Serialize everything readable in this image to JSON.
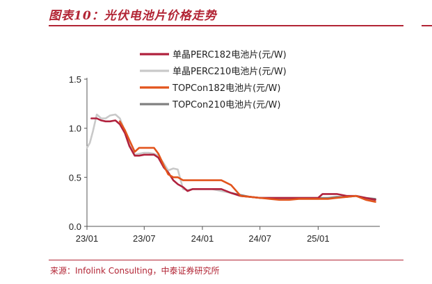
{
  "header": {
    "title": "图表10：光伏电池片价格走势"
  },
  "footer": {
    "source": "来源：Infolink Consulting，中泰证券研究所"
  },
  "chart_data": {
    "type": "line",
    "title": "图表10：光伏电池片价格走势",
    "xlabel": "",
    "ylabel": "",
    "ylim": [
      0.0,
      1.5
    ],
    "yticks": [
      0.0,
      0.5,
      1.0,
      1.5
    ],
    "ytick_labels": [
      "0.0",
      "0.5",
      "1.0",
      "1.5"
    ],
    "xlim": [
      "2023-01-01",
      "2025-07-15"
    ],
    "xticks": [
      "2023-01-01",
      "2023-07-01",
      "2024-01-01",
      "2024-07-01",
      "2025-01-01"
    ],
    "xtick_labels": [
      "23/01",
      "23/07",
      "24/01",
      "24/07",
      "25/01"
    ],
    "grid": false,
    "legend_position": "top-right",
    "series": [
      {
        "name": "单晶PERC182电池片(元/W)",
        "color": "#b0213d",
        "points": [
          [
            "2023-01-15",
            1.1
          ],
          [
            "2023-02-01",
            1.1
          ],
          [
            "2023-02-15",
            1.08
          ],
          [
            "2023-03-01",
            1.07
          ],
          [
            "2023-03-15",
            1.07
          ],
          [
            "2023-04-01",
            1.08
          ],
          [
            "2023-04-15",
            1.04
          ],
          [
            "2023-05-01",
            0.95
          ],
          [
            "2023-05-15",
            0.82
          ],
          [
            "2023-06-01",
            0.72
          ],
          [
            "2023-06-15",
            0.72
          ],
          [
            "2023-07-01",
            0.73
          ],
          [
            "2023-07-15",
            0.73
          ],
          [
            "2023-08-01",
            0.73
          ],
          [
            "2023-08-15",
            0.7
          ],
          [
            "2023-09-01",
            0.6
          ],
          [
            "2023-09-15",
            0.55
          ],
          [
            "2023-10-01",
            0.47
          ],
          [
            "2023-10-15",
            0.43
          ],
          [
            "2023-11-01",
            0.4
          ],
          [
            "2023-11-15",
            0.36
          ],
          [
            "2023-12-01",
            0.38
          ],
          [
            "2024-01-01",
            0.38
          ],
          [
            "2024-02-01",
            0.38
          ],
          [
            "2024-03-01",
            0.38
          ],
          [
            "2024-04-01",
            0.34
          ],
          [
            "2024-05-01",
            0.31
          ],
          [
            "2024-06-01",
            0.3
          ],
          [
            "2024-07-01",
            0.29
          ],
          [
            "2024-08-01",
            0.29
          ],
          [
            "2024-09-01",
            0.29
          ],
          [
            "2024-10-01",
            0.29
          ],
          [
            "2024-11-01",
            0.29
          ],
          [
            "2024-12-01",
            0.29
          ],
          [
            "2025-01-01",
            0.29
          ],
          [
            "2025-01-15",
            0.33
          ],
          [
            "2025-02-01",
            0.33
          ],
          [
            "2025-03-01",
            0.33
          ],
          [
            "2025-04-01",
            0.31
          ],
          [
            "2025-05-01",
            0.31
          ],
          [
            "2025-06-01",
            0.29
          ],
          [
            "2025-07-01",
            0.27
          ]
        ]
      },
      {
        "name": "单晶PERC210电池片(元/W)",
        "color": "#c9c9c9",
        "points": [
          [
            "2023-01-01",
            0.8
          ],
          [
            "2023-01-10",
            0.85
          ],
          [
            "2023-01-20",
            0.97
          ],
          [
            "2023-02-01",
            1.14
          ],
          [
            "2023-02-15",
            1.1
          ],
          [
            "2023-03-01",
            1.1
          ],
          [
            "2023-03-15",
            1.13
          ],
          [
            "2023-04-01",
            1.14
          ],
          [
            "2023-04-15",
            1.1
          ],
          [
            "2023-05-01",
            0.97
          ],
          [
            "2023-05-15",
            0.83
          ],
          [
            "2023-06-01",
            0.73
          ],
          [
            "2023-06-15",
            0.74
          ],
          [
            "2023-07-01",
            0.75
          ],
          [
            "2023-07-15",
            0.75
          ],
          [
            "2023-08-01",
            0.74
          ],
          [
            "2023-08-15",
            0.72
          ],
          [
            "2023-09-01",
            0.64
          ],
          [
            "2023-09-15",
            0.57
          ],
          [
            "2023-10-01",
            0.59
          ],
          [
            "2023-10-15",
            0.58
          ],
          [
            "2023-11-01",
            0.38
          ],
          [
            "2023-11-15",
            0.37
          ],
          [
            "2023-12-01",
            0.38
          ],
          [
            "2024-01-01",
            0.38
          ],
          [
            "2024-02-01",
            0.38
          ],
          [
            "2024-03-01",
            0.36
          ],
          [
            "2024-04-01",
            0.34
          ],
          [
            "2024-05-01",
            0.31
          ],
          [
            "2024-06-01",
            0.3
          ],
          [
            "2024-07-01",
            0.29
          ],
          [
            "2024-08-01",
            0.29
          ],
          [
            "2024-09-01",
            0.28
          ],
          [
            "2024-10-01",
            0.28
          ],
          [
            "2024-11-01",
            0.28
          ],
          [
            "2024-12-01",
            0.28
          ],
          [
            "2025-01-01",
            0.28
          ],
          [
            "2025-02-01",
            0.29
          ],
          [
            "2025-03-01",
            0.29
          ],
          [
            "2025-04-01",
            0.3
          ],
          [
            "2025-05-01",
            0.31
          ],
          [
            "2025-06-01",
            0.28
          ],
          [
            "2025-07-01",
            0.27
          ]
        ]
      },
      {
        "name": "TOPCon182电池片(元/W)",
        "color": "#e2541c",
        "points": [
          [
            "2023-04-15",
            1.07
          ],
          [
            "2023-05-01",
            0.98
          ],
          [
            "2023-05-15",
            0.88
          ],
          [
            "2023-06-01",
            0.76
          ],
          [
            "2023-06-15",
            0.8
          ],
          [
            "2023-07-01",
            0.8
          ],
          [
            "2023-07-15",
            0.8
          ],
          [
            "2023-08-01",
            0.8
          ],
          [
            "2023-08-15",
            0.74
          ],
          [
            "2023-09-01",
            0.62
          ],
          [
            "2023-09-15",
            0.53
          ],
          [
            "2023-10-01",
            0.5
          ],
          [
            "2023-10-15",
            0.5
          ],
          [
            "2023-11-01",
            0.47
          ],
          [
            "2023-12-01",
            0.47
          ],
          [
            "2024-01-01",
            0.47
          ],
          [
            "2024-02-01",
            0.47
          ],
          [
            "2024-03-01",
            0.47
          ],
          [
            "2024-04-01",
            0.42
          ],
          [
            "2024-05-01",
            0.31
          ],
          [
            "2024-06-01",
            0.3
          ],
          [
            "2024-07-01",
            0.29
          ],
          [
            "2024-08-01",
            0.28
          ],
          [
            "2024-09-01",
            0.27
          ],
          [
            "2024-10-01",
            0.27
          ],
          [
            "2024-11-01",
            0.28
          ],
          [
            "2024-12-01",
            0.28
          ],
          [
            "2025-01-01",
            0.28
          ],
          [
            "2025-02-01",
            0.28
          ],
          [
            "2025-03-01",
            0.29
          ],
          [
            "2025-04-01",
            0.3
          ],
          [
            "2025-05-01",
            0.31
          ],
          [
            "2025-06-01",
            0.27
          ],
          [
            "2025-07-01",
            0.25
          ]
        ]
      },
      {
        "name": "TOPCon210电池片(元/W)",
        "color": "#808080",
        "points": [
          [
            "2024-04-01",
            0.34
          ],
          [
            "2024-05-01",
            0.32
          ],
          [
            "2024-06-01",
            0.3
          ],
          [
            "2024-07-01",
            0.29
          ],
          [
            "2024-08-01",
            0.29
          ],
          [
            "2024-09-01",
            0.29
          ],
          [
            "2024-10-01",
            0.29
          ],
          [
            "2024-11-01",
            0.29
          ],
          [
            "2024-12-01",
            0.29
          ],
          [
            "2025-01-01",
            0.29
          ],
          [
            "2025-02-01",
            0.29
          ],
          [
            "2025-03-01",
            0.3
          ],
          [
            "2025-04-01",
            0.3
          ],
          [
            "2025-05-01",
            0.31
          ],
          [
            "2025-06-01",
            0.29
          ],
          [
            "2025-07-01",
            0.28
          ]
        ]
      }
    ]
  }
}
